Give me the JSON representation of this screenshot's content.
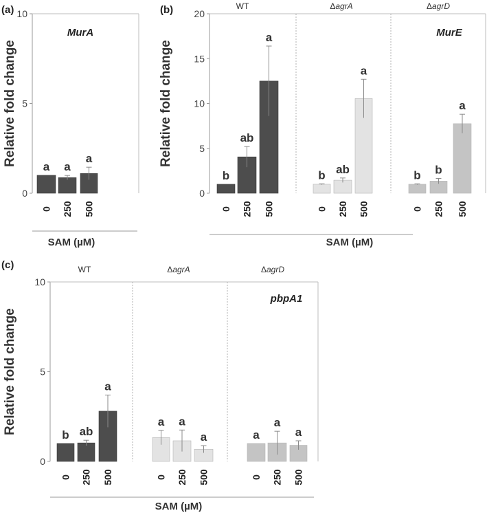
{
  "chart_data": [
    {
      "type": "bar",
      "panel_label": "(a)",
      "gene": "MurA",
      "ylabel": "Relative fold change",
      "xlabel": "SAM (µM)",
      "ylim": [
        0,
        10
      ],
      "yticks": [
        "0",
        "5",
        "10"
      ],
      "groups": [
        {
          "name": "",
          "color": "#4d4d4d",
          "categories": [
            "0",
            "250",
            "500"
          ],
          "values": [
            1.0,
            0.87,
            1.1
          ],
          "errors": [
            0.0,
            0.12,
            0.35
          ],
          "letters": [
            "a",
            "a",
            "a"
          ]
        }
      ]
    },
    {
      "type": "bar",
      "panel_label": "(b)",
      "gene": "MurE",
      "ylabel": "Relative fold change",
      "xlabel": "SAM (µM)",
      "ylim": [
        0,
        20
      ],
      "yticks": [
        "0",
        "5",
        "10",
        "15",
        "20"
      ],
      "groups": [
        {
          "name": "WT",
          "color": "#4d4d4d",
          "categories": [
            "0",
            "250",
            "500"
          ],
          "values": [
            1.0,
            4.05,
            12.5
          ],
          "errors": [
            0.0,
            1.15,
            3.9
          ],
          "letters": [
            "b",
            "ab",
            "a"
          ]
        },
        {
          "name": "ΔagrA",
          "color": "#e3e3e3",
          "categories": [
            "0",
            "250",
            "500"
          ],
          "values": [
            1.0,
            1.45,
            10.55
          ],
          "errors": [
            0.05,
            0.25,
            2.15
          ],
          "letters": [
            "b",
            "ab",
            "a"
          ]
        },
        {
          "name": "ΔagrD",
          "color": "#c4c4c4",
          "categories": [
            "0",
            "250",
            "500"
          ],
          "values": [
            1.0,
            1.35,
            7.75
          ],
          "errors": [
            0.05,
            0.3,
            1.05
          ],
          "letters": [
            "b",
            "b",
            "a"
          ]
        }
      ]
    },
    {
      "type": "bar",
      "panel_label": "(c)",
      "gene": "pbpA1",
      "ylabel": "Relative fold change",
      "xlabel": "SAM (µM)",
      "ylim": [
        0,
        10
      ],
      "yticks": [
        "0",
        "5",
        "10"
      ],
      "groups": [
        {
          "name": "WT",
          "color": "#4d4d4d",
          "categories": [
            "0",
            "250",
            "500"
          ],
          "values": [
            1.0,
            1.03,
            2.8
          ],
          "errors": [
            0.0,
            0.15,
            0.9
          ],
          "letters": [
            "b",
            "ab",
            "a"
          ]
        },
        {
          "name": "ΔagrA",
          "color": "#e3e3e3",
          "categories": [
            "0",
            "250",
            "500"
          ],
          "values": [
            1.33,
            1.15,
            0.68
          ],
          "errors": [
            0.4,
            0.6,
            0.2
          ],
          "letters": [
            "a",
            "a",
            "a"
          ]
        },
        {
          "name": "ΔagrD",
          "color": "#c4c4c4",
          "categories": [
            "0",
            "250",
            "500"
          ],
          "values": [
            1.0,
            1.03,
            0.9
          ],
          "errors": [
            0.0,
            0.65,
            0.25
          ],
          "letters": [
            "a",
            "a",
            "a"
          ]
        }
      ]
    }
  ]
}
